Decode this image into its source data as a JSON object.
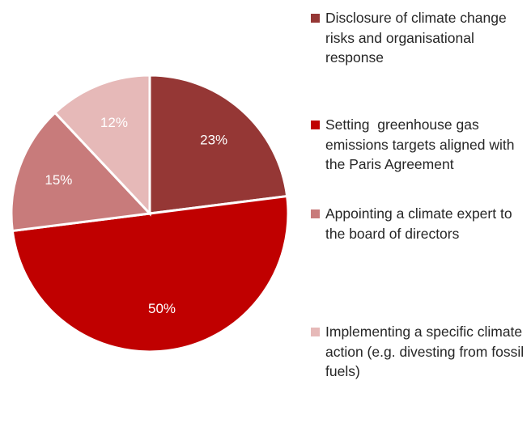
{
  "chart_data": {
    "type": "pie",
    "categories": [
      "Disclosure of climate change risks and organisational response",
      "Setting  greenhouse gas emissions targets aligned with the Paris Agreement",
      "Appointing a climate expert to the board of directors",
      "Implementing a specific climate action (e.g. divesting from fossil fuels)"
    ],
    "values": [
      23,
      50,
      15,
      12
    ],
    "value_labels": [
      "23%",
      "50%",
      "15%",
      "12%"
    ],
    "colors": [
      "#953735",
      "#c00000",
      "#c87b7b",
      "#e6b9b8"
    ],
    "legend": "right"
  }
}
